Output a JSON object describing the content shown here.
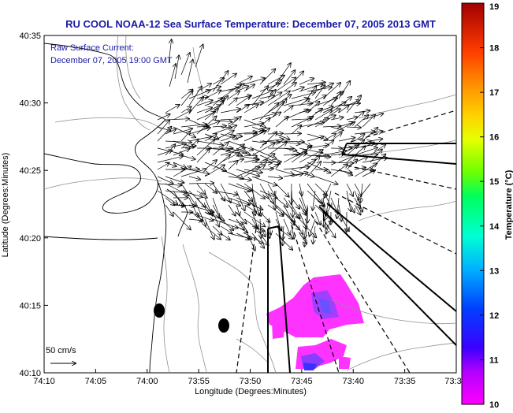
{
  "title": "RU COOL  NOAA-12  Sea Surface Temperature:  December 07, 2005 2013 GMT",
  "legend": {
    "line1": "Raw Surface Current:",
    "line2": "December 07, 2005 19:00 GMT"
  },
  "scale_label": "50 cm/s",
  "axes": {
    "xlabel": "Longitude (Degrees:Minutes)",
    "ylabel": "Latitude (Degrees:Minutes)",
    "xticks": [
      "74:10",
      "74:05",
      "74:00",
      "73:55",
      "73:50",
      "73:45",
      "73:40",
      "73:35",
      "73:3"
    ],
    "yticks": [
      "40:35",
      "40:30",
      "40:25",
      "40:20",
      "40:15",
      "40:10"
    ]
  },
  "colorbar": {
    "label": "Temperature (°C)",
    "ticks": [
      "19",
      "18",
      "17",
      "16",
      "15",
      "14",
      "13",
      "12",
      "11",
      "10"
    ],
    "min": 10,
    "max": 19
  },
  "colors": {
    "title": "#1a1aa6",
    "frame": "#000000",
    "coast": "#000000",
    "bathy": "#999999"
  }
}
